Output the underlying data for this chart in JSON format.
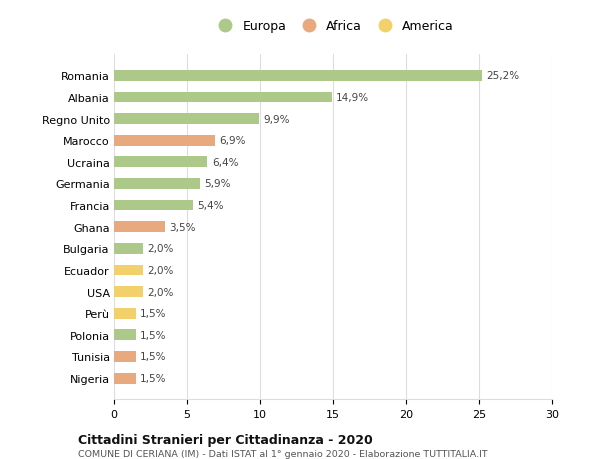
{
  "countries": [
    "Romania",
    "Albania",
    "Regno Unito",
    "Marocco",
    "Ucraina",
    "Germania",
    "Francia",
    "Ghana",
    "Bulgaria",
    "Ecuador",
    "USA",
    "Perù",
    "Polonia",
    "Tunisia",
    "Nigeria"
  ],
  "values": [
    25.2,
    14.9,
    9.9,
    6.9,
    6.4,
    5.9,
    5.4,
    3.5,
    2.0,
    2.0,
    2.0,
    1.5,
    1.5,
    1.5,
    1.5
  ],
  "labels": [
    "25,2%",
    "14,9%",
    "9,9%",
    "6,9%",
    "6,4%",
    "5,9%",
    "5,4%",
    "3,5%",
    "2,0%",
    "2,0%",
    "2,0%",
    "1,5%",
    "1,5%",
    "1,5%",
    "1,5%"
  ],
  "categories": [
    "Europa",
    "Europa",
    "Europa",
    "Africa",
    "Europa",
    "Europa",
    "Europa",
    "Africa",
    "Europa",
    "America",
    "America",
    "America",
    "Europa",
    "Africa",
    "Africa"
  ],
  "color_europa": "#adc98a",
  "color_africa": "#e8a97e",
  "color_america": "#f2d06b",
  "title": "Cittadini Stranieri per Cittadinanza - 2020",
  "subtitle": "COMUNE DI CERIANA (IM) - Dati ISTAT al 1° gennaio 2020 - Elaborazione TUTTITALIA.IT",
  "xlim": [
    0,
    30
  ],
  "xticks": [
    0,
    5,
    10,
    15,
    20,
    25,
    30
  ],
  "legend_labels": [
    "Europa",
    "Africa",
    "America"
  ],
  "legend_colors": [
    "#adc98a",
    "#e8a97e",
    "#f2d06b"
  ],
  "background_color": "#ffffff",
  "grid_color": "#dddddd"
}
